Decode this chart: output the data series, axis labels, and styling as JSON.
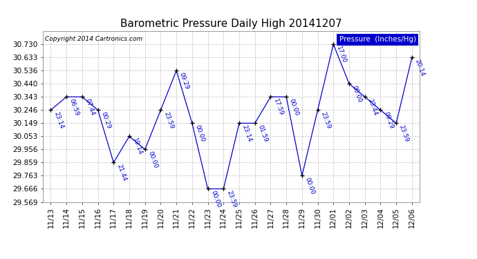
{
  "title": "Barometric Pressure Daily High 20141207",
  "copyright": "Copyright 2014 Cartronics.com",
  "legend_label": "Pressure  (Inches/Hg)",
  "x_labels": [
    "11/13",
    "11/14",
    "11/15",
    "11/16",
    "11/17",
    "11/18",
    "11/19",
    "11/20",
    "11/21",
    "11/22",
    "11/23",
    "11/24",
    "11/25",
    "11/26",
    "11/27",
    "11/28",
    "11/29",
    "11/30",
    "12/01",
    "12/02",
    "12/03",
    "12/04",
    "12/05",
    "12/06"
  ],
  "y_values": [
    30.246,
    30.343,
    30.343,
    30.246,
    29.859,
    30.053,
    29.956,
    30.246,
    30.536,
    30.149,
    29.666,
    29.666,
    30.149,
    30.149,
    30.343,
    30.343,
    29.763,
    30.246,
    30.73,
    30.44,
    30.343,
    30.246,
    30.149,
    30.633
  ],
  "point_labels": [
    "23:14",
    "06:59",
    "07:44",
    "00:29",
    "21:44",
    "19:14",
    "00:00",
    "23:59",
    "09:29",
    "00:00",
    "00:00",
    "23:59",
    "23:14",
    "01:59",
    "17:59",
    "00:00",
    "00:00",
    "23:59",
    "17:00",
    "00:00",
    "23:44",
    "09:29",
    "23:59",
    "20:14"
  ],
  "ytick_vals": [
    29.569,
    29.666,
    29.763,
    29.859,
    29.956,
    30.053,
    30.149,
    30.246,
    30.343,
    30.44,
    30.536,
    30.633,
    30.73
  ],
  "ylim": [
    29.569,
    30.827
  ],
  "line_color": "#0000CC",
  "bg_color": "#ffffff",
  "grid_color": "#bbbbbb",
  "title_fontsize": 11,
  "annot_fontsize": 6.5,
  "tick_fontsize": 7.5
}
